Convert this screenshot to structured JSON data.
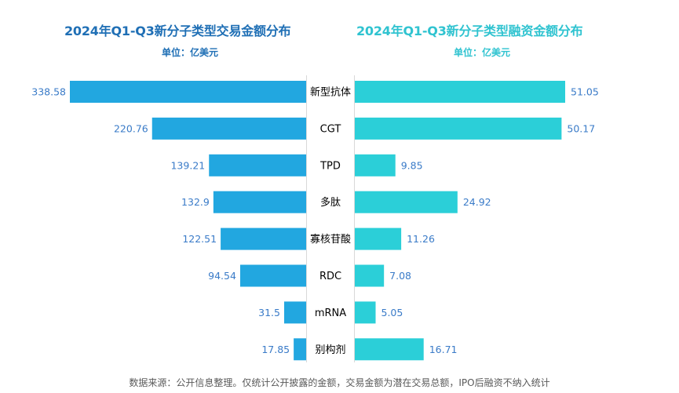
{
  "left_title": "2024年Q1-Q3新分子类型交易金额分布",
  "right_title": "2024年Q1-Q3新分子类型融资金额分布",
  "left_unit": "单位：亿美元",
  "right_unit": "单位：亿美元",
  "source": "数据来源：公开信息整理。仅统计公开披露的金额，交易金额为潜在交易总额，IPO后融资不纳入统计",
  "colors": {
    "left_bar": "#22a7e0",
    "right_bar": "#2bcfd8",
    "label": "#3a7bc8",
    "category": "#000000"
  },
  "chart_data": [
    {
      "type": "bar",
      "orientation": "horizontal",
      "title": "2024年Q1-Q3新分子类型交易金额分布",
      "unit": "单位：亿美元",
      "categories": [
        "新型抗体",
        "CGT",
        "TPD",
        "多肽",
        "寡核苷酸",
        "RDC",
        "mRNA",
        "别构剂"
      ],
      "values": [
        338.58,
        220.76,
        139.21,
        132.9,
        122.51,
        94.54,
        31.5,
        17.85
      ],
      "value_labels": [
        "338.58",
        "220.76",
        "139.21",
        "132.9",
        "122.51",
        "94.54",
        "31.5",
        "17.85"
      ]
    },
    {
      "type": "bar",
      "orientation": "horizontal",
      "title": "2024年Q1-Q3新分子类型融资金额分布",
      "unit": "单位：亿美元",
      "categories": [
        "新型抗体",
        "CGT",
        "TPD",
        "多肽",
        "寡核苷酸",
        "RDC",
        "mRNA",
        "别构剂"
      ],
      "values": [
        51.05,
        50.17,
        9.85,
        24.92,
        11.26,
        7.08,
        5.05,
        16.71
      ],
      "value_labels": [
        "51.05",
        "50.17",
        "9.85",
        "24.92",
        "11.26",
        "7.08",
        "5.05",
        "16.71"
      ]
    }
  ]
}
